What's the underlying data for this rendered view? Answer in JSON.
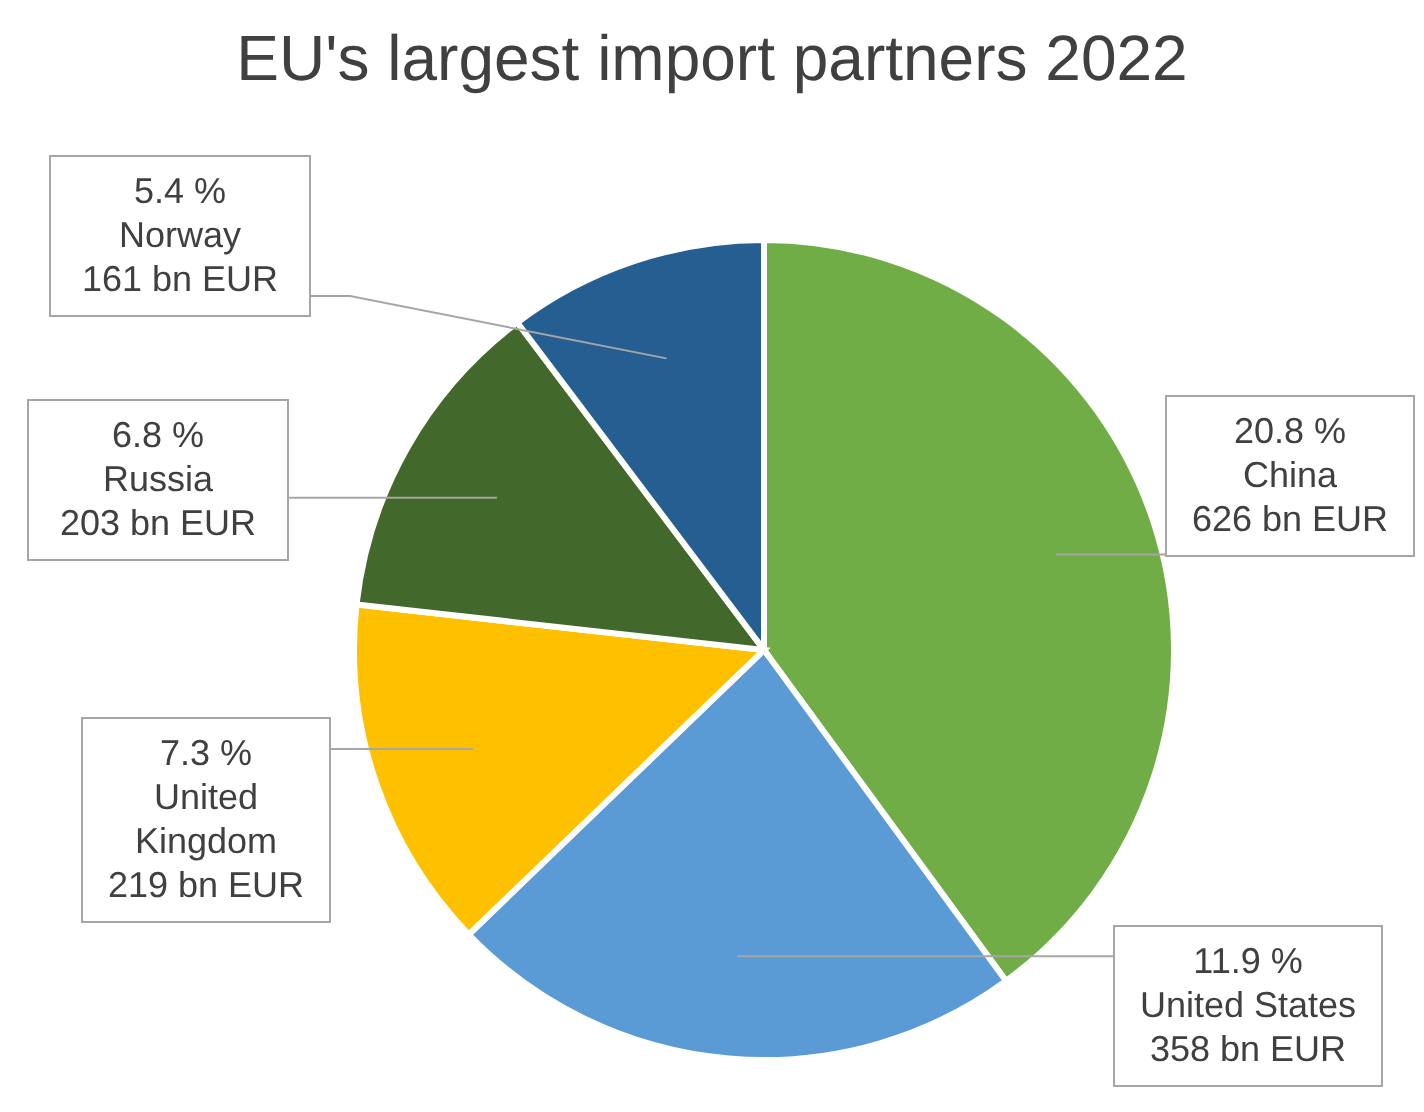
{
  "chart_data": {
    "type": "pie",
    "title": "EU's largest import partners 2022",
    "categories": [
      "China",
      "United States",
      "United Kingdom",
      "Russia",
      "Norway"
    ],
    "values": [
      626,
      358,
      219,
      203,
      161
    ],
    "colors": [
      "#70ad47",
      "#5b9bd5",
      "#ffc000",
      "#43682b",
      "#255e91"
    ],
    "value_labels": [
      "626 bn EUR",
      "358 bn EUR",
      "219 bn EUR",
      "203 bn EUR",
      "161 bn EUR"
    ],
    "annotations": [
      {
        "text": "20.8 %",
        "x": "China"
      },
      {
        "text": "11.9 %",
        "x": "United States"
      },
      {
        "text": "7.3 %",
        "x": "United Kingdom"
      },
      {
        "text": "6.8 %",
        "x": "Russia"
      },
      {
        "text": "5.4 %",
        "x": "Norway"
      }
    ],
    "legend": false
  }
}
